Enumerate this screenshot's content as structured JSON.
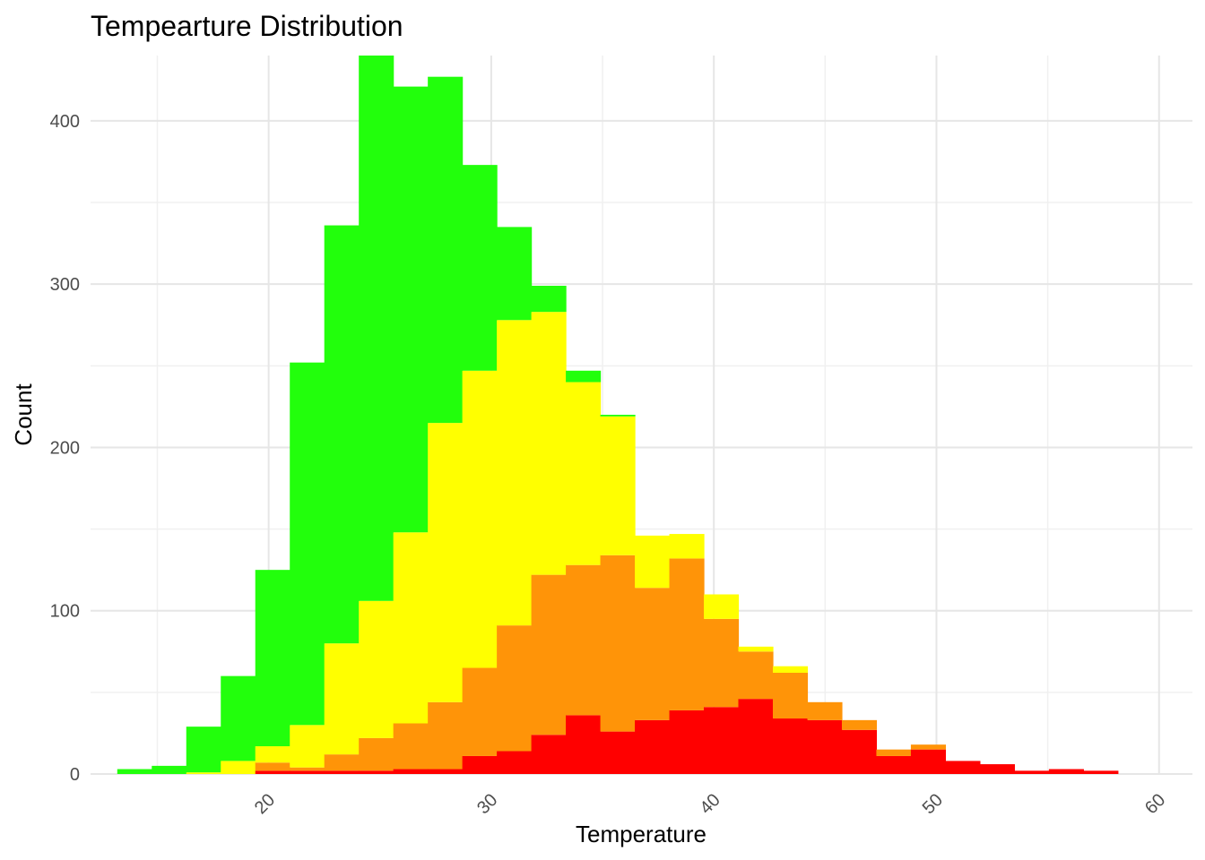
{
  "chart_data": {
    "type": "bar",
    "stacked": true,
    "title": "Tempearture Distribution",
    "xlabel": "Temperature",
    "ylabel": "Count",
    "xlim": [
      12,
      61.5
    ],
    "ylim": [
      0,
      440
    ],
    "x_ticks": [
      20,
      30,
      40,
      50,
      60
    ],
    "y_ticks": [
      0,
      100,
      200,
      300,
      400
    ],
    "x_tick_rotation": -45,
    "grid": true,
    "legend": "none",
    "bins": {
      "start": 13.2,
      "width": 1.55,
      "count": 29
    },
    "series": [
      {
        "color": "#ff0000",
        "values": [
          0,
          0,
          0,
          0,
          2,
          2,
          2,
          2,
          3,
          3,
          11,
          14,
          24,
          36,
          26,
          33,
          39,
          41,
          46,
          34,
          33,
          27,
          11,
          15,
          8,
          6,
          2,
          3,
          2
        ]
      },
      {
        "color": "#ff9408",
        "values": [
          0,
          0,
          0,
          0,
          5,
          2,
          10,
          20,
          28,
          41,
          54,
          77,
          98,
          92,
          108,
          81,
          93,
          54,
          29,
          28,
          11,
          6,
          4,
          3,
          0,
          0,
          0,
          0,
          0
        ]
      },
      {
        "color": "#ffff00",
        "values": [
          0,
          0,
          1,
          8,
          10,
          26,
          68,
          84,
          117,
          171,
          182,
          187,
          161,
          112,
          85,
          32,
          15,
          15,
          3,
          4,
          0,
          0,
          0,
          0,
          0,
          0,
          0,
          0,
          0
        ]
      },
      {
        "color": "#22ff0c",
        "values": [
          3,
          5,
          28,
          52,
          108,
          222,
          256,
          334,
          273,
          212,
          126,
          57,
          16,
          7,
          1,
          0,
          0,
          0,
          0,
          0,
          0,
          0,
          0,
          0,
          0,
          0,
          0,
          0,
          0
        ]
      }
    ]
  }
}
